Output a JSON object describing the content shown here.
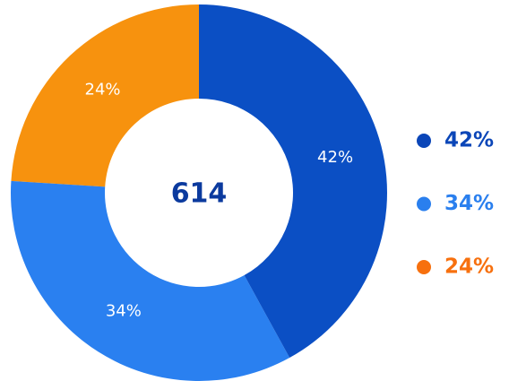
{
  "chart_data": {
    "type": "donut",
    "values": [
      42,
      34,
      24
    ],
    "value_labels": [
      "42%",
      "34%",
      "24%"
    ],
    "colors": [
      "#0b4fc4",
      "#2a80f0",
      "#f7920e"
    ],
    "legend_colors": [
      "#0b46b8",
      "#2a7fee",
      "#f7700e"
    ],
    "center_label": "614"
  }
}
